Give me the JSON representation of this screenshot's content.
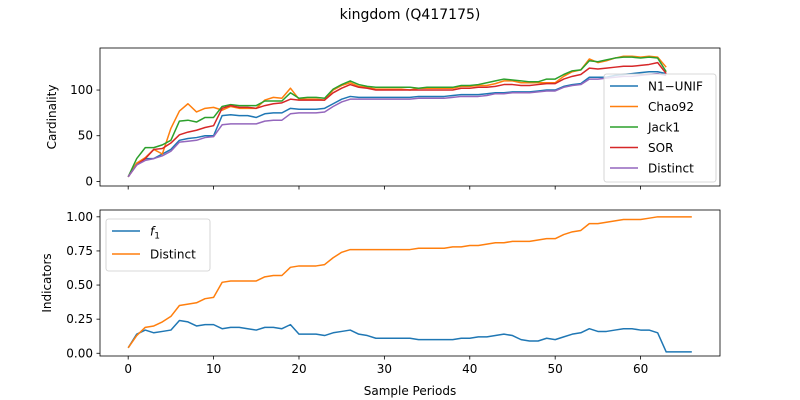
{
  "title": "kingdom (Q417175)",
  "colors": {
    "blue": "#1f77b4",
    "orange": "#ff7f0e",
    "green": "#2ca02c",
    "red": "#d62728",
    "purple": "#9467bd"
  },
  "chart_data": [
    {
      "type": "line",
      "title": "",
      "xlabel": "",
      "ylabel": "Cardinality",
      "xlim": [
        -3.3,
        69.3
      ],
      "ylim": [
        -5,
        146
      ],
      "xticks": [
        0,
        10,
        20,
        30,
        40,
        50,
        60
      ],
      "xticklabels": [
        "",
        "",
        "",
        "",
        "",
        "",
        ""
      ],
      "yticks": [
        0,
        50,
        100
      ],
      "yticklabels": [
        "0",
        "50",
        "100"
      ],
      "legend": "right",
      "grid": false,
      "series": [
        {
          "name": "N1−UNIF",
          "color": "#1f77b4",
          "x": [
            0,
            1,
            2,
            3,
            4,
            5,
            6,
            7,
            8,
            9,
            10,
            11,
            12,
            13,
            14,
            15,
            16,
            17,
            18,
            19,
            20,
            21,
            22,
            23,
            24,
            25,
            26,
            27,
            28,
            29,
            30,
            31,
            32,
            33,
            34,
            35,
            36,
            37,
            38,
            39,
            40,
            41,
            42,
            43,
            44,
            45,
            46,
            47,
            48,
            49,
            50,
            51,
            52,
            53,
            54,
            55,
            56,
            57,
            58,
            59,
            60,
            61,
            62,
            63
          ],
          "values": [
            5,
            20,
            25,
            25,
            30,
            35,
            45,
            47,
            48,
            50,
            50,
            72,
            73,
            72,
            72,
            70,
            74,
            75,
            75,
            80,
            79,
            79,
            79,
            80,
            85,
            90,
            93,
            92,
            92,
            92,
            92,
            92,
            92,
            92,
            93,
            93,
            93,
            93,
            94,
            95,
            95,
            95,
            96,
            97,
            97,
            98,
            98,
            98,
            99,
            100,
            100,
            104,
            106,
            107,
            114,
            114,
            114,
            116,
            117,
            118,
            119,
            120,
            120,
            118
          ]
        },
        {
          "name": "Chao92",
          "color": "#ff7f0e",
          "x": [
            0,
            1,
            2,
            3,
            4,
            5,
            6,
            7,
            8,
            9,
            10,
            11,
            12,
            13,
            14,
            15,
            16,
            17,
            18,
            19,
            20,
            21,
            22,
            23,
            24,
            25,
            26,
            27,
            28,
            29,
            30,
            31,
            32,
            33,
            34,
            35,
            36,
            37,
            38,
            39,
            40,
            41,
            42,
            43,
            44,
            45,
            46,
            47,
            48,
            49,
            50,
            51,
            52,
            53,
            54,
            55,
            56,
            57,
            58,
            59,
            60,
            61,
            62,
            63
          ],
          "values": [
            5,
            20,
            26,
            35,
            30,
            58,
            77,
            85,
            76,
            80,
            81,
            78,
            82,
            80,
            80,
            80,
            89,
            92,
            91,
            102,
            90,
            90,
            90,
            89,
            100,
            105,
            108,
            104,
            103,
            101,
            101,
            101,
            101,
            100,
            102,
            102,
            102,
            102,
            102,
            104,
            104,
            105,
            105,
            107,
            110,
            110,
            108,
            108,
            108,
            108,
            108,
            115,
            120,
            122,
            134,
            130,
            132,
            135,
            137,
            137,
            136,
            137,
            136,
            125
          ]
        },
        {
          "name": "Jack1",
          "color": "#2ca02c",
          "x": [
            0,
            1,
            2,
            3,
            4,
            5,
            6,
            7,
            8,
            9,
            10,
            11,
            12,
            13,
            14,
            15,
            16,
            17,
            18,
            19,
            20,
            21,
            22,
            23,
            24,
            25,
            26,
            27,
            28,
            29,
            30,
            31,
            32,
            33,
            34,
            35,
            36,
            37,
            38,
            39,
            40,
            41,
            42,
            43,
            44,
            45,
            46,
            47,
            48,
            49,
            50,
            51,
            52,
            53,
            54,
            55,
            56,
            57,
            58,
            59,
            60,
            61,
            62,
            63
          ],
          "values": [
            5,
            25,
            37,
            37,
            40,
            45,
            66,
            67,
            65,
            70,
            70,
            82,
            84,
            83,
            83,
            83,
            88,
            88,
            88,
            97,
            91,
            92,
            92,
            91,
            101,
            106,
            110,
            106,
            104,
            103,
            103,
            103,
            103,
            103,
            102,
            103,
            103,
            103,
            103,
            105,
            105,
            106,
            108,
            110,
            112,
            111,
            110,
            109,
            109,
            112,
            112,
            117,
            121,
            122,
            132,
            131,
            133,
            135,
            136,
            136,
            135,
            136,
            135,
            120
          ]
        },
        {
          "name": "SOR",
          "color": "#d62728",
          "x": [
            0,
            1,
            2,
            3,
            4,
            5,
            6,
            7,
            8,
            9,
            10,
            11,
            12,
            13,
            14,
            15,
            16,
            17,
            18,
            19,
            20,
            21,
            22,
            23,
            24,
            25,
            26,
            27,
            28,
            29,
            30,
            31,
            32,
            33,
            34,
            35,
            36,
            37,
            38,
            39,
            40,
            41,
            42,
            43,
            44,
            45,
            46,
            47,
            48,
            49,
            50,
            51,
            52,
            53,
            54,
            55,
            56,
            57,
            58,
            59,
            60,
            61,
            62,
            63
          ],
          "values": [
            5,
            18,
            25,
            35,
            36,
            42,
            51,
            54,
            56,
            59,
            61,
            80,
            83,
            81,
            81,
            80,
            83,
            85,
            86,
            90,
            89,
            89,
            89,
            89,
            97,
            102,
            106,
            103,
            102,
            100,
            100,
            100,
            100,
            100,
            100,
            100,
            100,
            100,
            100,
            102,
            102,
            103,
            103,
            104,
            106,
            106,
            105,
            105,
            106,
            107,
            107,
            112,
            115,
            117,
            124,
            123,
            124,
            125,
            126,
            126,
            127,
            128,
            130,
            118
          ]
        },
        {
          "name": "Distinct",
          "color": "#9467bd",
          "x": [
            0,
            1,
            2,
            3,
            4,
            5,
            6,
            7,
            8,
            9,
            10,
            11,
            12,
            13,
            14,
            15,
            16,
            17,
            18,
            19,
            20,
            21,
            22,
            23,
            24,
            25,
            26,
            27,
            28,
            29,
            30,
            31,
            32,
            33,
            34,
            35,
            36,
            37,
            38,
            39,
            40,
            41,
            42,
            43,
            44,
            45,
            46,
            47,
            48,
            49,
            50,
            51,
            52,
            53,
            54,
            55,
            56,
            57,
            58,
            59,
            60,
            61,
            62,
            63
          ],
          "values": [
            5,
            18,
            23,
            25,
            28,
            33,
            43,
            44,
            45,
            48,
            49,
            62,
            63,
            63,
            63,
            63,
            66,
            67,
            67,
            74,
            75,
            75,
            75,
            76,
            82,
            87,
            90,
            90,
            90,
            90,
            90,
            90,
            90,
            90,
            91,
            91,
            91,
            91,
            92,
            93,
            93,
            93,
            94,
            96,
            96,
            97,
            97,
            97,
            98,
            99,
            99,
            103,
            105,
            106,
            112,
            112,
            113,
            114,
            115,
            115,
            116,
            117,
            118,
            116
          ]
        }
      ]
    },
    {
      "type": "line",
      "title": "",
      "xlabel": "Sample Periods",
      "ylabel": "Indicators",
      "xlim": [
        -3.3,
        69.3
      ],
      "ylim": [
        -0.02,
        1.05
      ],
      "xticks": [
        0,
        10,
        20,
        30,
        40,
        50,
        60
      ],
      "xticklabels": [
        "0",
        "10",
        "20",
        "30",
        "40",
        "50",
        "60"
      ],
      "yticks": [
        0.0,
        0.25,
        0.5,
        0.75,
        1.0
      ],
      "yticklabels": [
        "0.00",
        "0.25",
        "0.50",
        "0.75",
        "1.00"
      ],
      "legend": "upper left",
      "grid": false,
      "series": [
        {
          "name": "f",
          "name_sub": "1",
          "color": "#1f77b4",
          "x": [
            0,
            1,
            2,
            3,
            4,
            5,
            6,
            7,
            8,
            9,
            10,
            11,
            12,
            13,
            14,
            15,
            16,
            17,
            18,
            19,
            20,
            21,
            22,
            23,
            24,
            25,
            26,
            27,
            28,
            29,
            30,
            31,
            32,
            33,
            34,
            35,
            36,
            37,
            38,
            39,
            40,
            41,
            42,
            43,
            44,
            45,
            46,
            47,
            48,
            49,
            50,
            51,
            52,
            53,
            54,
            55,
            56,
            57,
            58,
            59,
            60,
            61,
            62,
            63,
            64,
            65,
            66
          ],
          "values": [
            0.04,
            0.14,
            0.17,
            0.15,
            0.16,
            0.17,
            0.24,
            0.23,
            0.2,
            0.21,
            0.21,
            0.18,
            0.19,
            0.19,
            0.18,
            0.17,
            0.19,
            0.19,
            0.18,
            0.21,
            0.14,
            0.14,
            0.14,
            0.13,
            0.15,
            0.16,
            0.17,
            0.14,
            0.13,
            0.11,
            0.11,
            0.11,
            0.11,
            0.11,
            0.1,
            0.1,
            0.1,
            0.1,
            0.1,
            0.11,
            0.11,
            0.12,
            0.12,
            0.13,
            0.14,
            0.13,
            0.1,
            0.09,
            0.09,
            0.11,
            0.1,
            0.12,
            0.14,
            0.15,
            0.18,
            0.16,
            0.16,
            0.17,
            0.18,
            0.18,
            0.17,
            0.17,
            0.15,
            0.01,
            0.01,
            0.01,
            0.01
          ]
        },
        {
          "name": "Distinct",
          "color": "#ff7f0e",
          "x": [
            0,
            1,
            2,
            3,
            4,
            5,
            6,
            7,
            8,
            9,
            10,
            11,
            12,
            13,
            14,
            15,
            16,
            17,
            18,
            19,
            20,
            21,
            22,
            23,
            24,
            25,
            26,
            27,
            28,
            29,
            30,
            31,
            32,
            33,
            34,
            35,
            36,
            37,
            38,
            39,
            40,
            41,
            42,
            43,
            44,
            45,
            46,
            47,
            48,
            49,
            50,
            51,
            52,
            53,
            54,
            55,
            56,
            57,
            58,
            59,
            60,
            61,
            62,
            63,
            64,
            65,
            66
          ],
          "values": [
            0.04,
            0.13,
            0.19,
            0.2,
            0.23,
            0.27,
            0.35,
            0.36,
            0.37,
            0.4,
            0.41,
            0.52,
            0.53,
            0.53,
            0.53,
            0.53,
            0.56,
            0.57,
            0.57,
            0.63,
            0.64,
            0.64,
            0.64,
            0.65,
            0.7,
            0.74,
            0.76,
            0.76,
            0.76,
            0.76,
            0.76,
            0.76,
            0.76,
            0.76,
            0.77,
            0.77,
            0.77,
            0.77,
            0.78,
            0.78,
            0.79,
            0.79,
            0.8,
            0.81,
            0.81,
            0.82,
            0.82,
            0.82,
            0.83,
            0.84,
            0.84,
            0.87,
            0.89,
            0.9,
            0.95,
            0.95,
            0.96,
            0.97,
            0.98,
            0.98,
            0.98,
            0.99,
            1.0,
            1.0,
            1.0,
            1.0,
            1.0
          ]
        }
      ]
    }
  ]
}
